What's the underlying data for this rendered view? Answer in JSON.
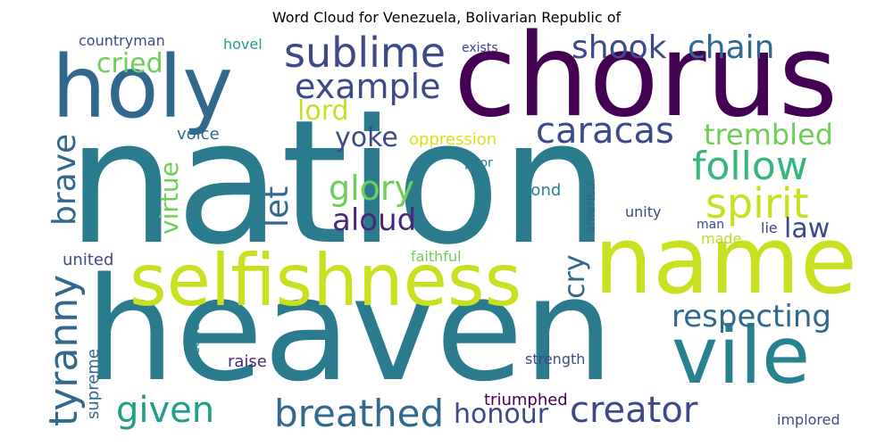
{
  "title": "Word Cloud for Venezuela, Bolivarian Republic of",
  "colors": {
    "dark_purple": "#440154",
    "purple": "#482878",
    "indigo": "#3e4989",
    "slate_blue": "#31688e",
    "teal_blue": "#2b7b8e",
    "teal": "#26828e",
    "green_teal": "#1f9e89",
    "green": "#35b779",
    "light_green": "#6ece58",
    "yellow_green": "#b5de2b",
    "yellow": "#d8e219"
  },
  "words": [
    {
      "text": "nation",
      "color": "#2b7b8e"
    },
    {
      "text": "heaven",
      "color": "#2b7b8e"
    },
    {
      "text": "chorus",
      "color": "#440154"
    },
    {
      "text": "holy",
      "color": "#31688e"
    },
    {
      "text": "name",
      "color": "#c8e020"
    },
    {
      "text": "selfishness",
      "color": "#c8e020"
    },
    {
      "text": "vile",
      "color": "#26828e"
    },
    {
      "text": "sublime",
      "color": "#3e4989"
    },
    {
      "text": "example",
      "color": "#3e4989"
    },
    {
      "text": "shook",
      "color": "#3e4989"
    },
    {
      "text": "chain",
      "color": "#31688e"
    },
    {
      "text": "cried",
      "color": "#6ece58"
    },
    {
      "text": "lord",
      "color": "#c8e020"
    },
    {
      "text": "caracas",
      "color": "#3e4989"
    },
    {
      "text": "trembled",
      "color": "#6ece58"
    },
    {
      "text": "follow",
      "color": "#35b779"
    },
    {
      "text": "spirit",
      "color": "#c8e020"
    },
    {
      "text": "yoke",
      "color": "#3e4989"
    },
    {
      "text": "glory",
      "color": "#6ece58"
    },
    {
      "text": "aloud",
      "color": "#482878"
    },
    {
      "text": "law",
      "color": "#3e4989"
    },
    {
      "text": "oppression",
      "color": "#d8e219"
    },
    {
      "text": "voice",
      "color": "#31688e"
    },
    {
      "text": "virtue",
      "color": "#6ece58"
    },
    {
      "text": "brave",
      "color": "#31688e"
    },
    {
      "text": "let",
      "color": "#31688e"
    },
    {
      "text": "bond",
      "color": "#26828e"
    },
    {
      "text": "poor",
      "color": "#26828e"
    },
    {
      "text": "america",
      "color": "#31688e"
    },
    {
      "text": "unity",
      "color": "#3e4989"
    },
    {
      "text": "man",
      "color": "#3e4989"
    },
    {
      "text": "made",
      "color": "#b5de2b"
    },
    {
      "text": "lie",
      "color": "#3e4989"
    },
    {
      "text": "tyranny",
      "color": "#31688e"
    },
    {
      "text": "united",
      "color": "#3e4989"
    },
    {
      "text": "faithful",
      "color": "#6ece58"
    },
    {
      "text": "cry",
      "color": "#31688e"
    },
    {
      "text": "respecting",
      "color": "#31688e"
    },
    {
      "text": "freedom",
      "color": "#26828e"
    },
    {
      "text": "raise",
      "color": "#482878"
    },
    {
      "text": "strength",
      "color": "#3e4989"
    },
    {
      "text": "supreme",
      "color": "#31688e"
    },
    {
      "text": "given",
      "color": "#1f9e89"
    },
    {
      "text": "breathed",
      "color": "#31688e"
    },
    {
      "text": "honour",
      "color": "#3e4989"
    },
    {
      "text": "creator",
      "color": "#3e4989"
    },
    {
      "text": "triumphed",
      "color": "#440154"
    },
    {
      "text": "implored",
      "color": "#3e4989"
    },
    {
      "text": "countryman",
      "color": "#3e4989"
    },
    {
      "text": "hovel",
      "color": "#1f9e89"
    },
    {
      "text": "exists",
      "color": "#3e4989"
    }
  ]
}
